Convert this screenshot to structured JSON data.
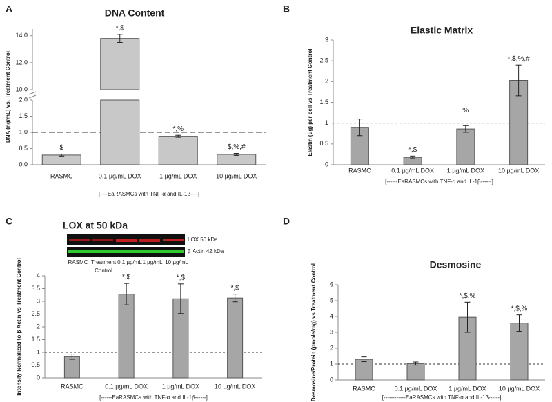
{
  "chart_data": [
    {
      "type": "bar",
      "panel": "A",
      "title": "DNA Content",
      "y_label": "DNA (ng/mL) vs. Treatment Control",
      "x_note": "[----EaRASMCs with TNF-α and IL-1β----]",
      "categories": [
        "RASMC",
        "0.1 µg/mL DOX",
        "1 µg/mL DOX",
        "10 µg/mL DOX"
      ],
      "values": [
        0.3,
        13.8,
        0.88,
        0.32
      ],
      "errors": [
        0.03,
        0.3,
        0.03,
        0.03
      ],
      "annotations": [
        "$",
        "*,$",
        "*,%",
        "$,%,#"
      ],
      "color": "#c8c8c8",
      "ylim": [
        0,
        14.5
      ],
      "axis_break": [
        2.0,
        10.0
      ],
      "ref_line": 1.0,
      "yticks": [
        {
          "value": 0,
          "label": "0.0"
        },
        {
          "value": 0.5,
          "label": "0.5"
        },
        {
          "value": 1,
          "label": "1.0"
        },
        {
          "value": 1.5,
          "label": "1.5"
        },
        {
          "value": 2,
          "label": "2.0"
        },
        {
          "value": 10,
          "label": "10.0"
        },
        {
          "value": 12,
          "label": "12.0"
        },
        {
          "value": 14,
          "label": "14.0"
        }
      ]
    },
    {
      "type": "bar",
      "panel": "B",
      "title": "Elastic Matrix",
      "y_label": "Elastin (ug) per cell vs Treatment Control",
      "x_note": "[------EaRASMCs  with TNF-α and IL-1β------]",
      "categories": [
        "RASMC",
        "0.1 µg/mL DOX",
        "1 µg/mL DOX",
        "10 µg/mL DOX"
      ],
      "values": [
        0.9,
        0.18,
        0.86,
        2.03
      ],
      "errors": [
        0.2,
        0.03,
        0.08,
        0.37
      ],
      "annotations": [
        null,
        "*,$",
        "%",
        "*,$,%,#"
      ],
      "color": "#a6a6a6",
      "ylim": [
        0,
        3
      ],
      "ref_line": 1,
      "yticks": [
        0,
        0.5,
        1,
        1.5,
        2,
        2.5,
        3
      ]
    },
    {
      "type": "bar",
      "panel": "C",
      "title": "LOX at 50 kDa",
      "y_label": "Intensity Normalized to β Actin vs Treatment Control",
      "x_note": "[------EaRASMCs  with TNF-α and IL-1β------]",
      "blot": {
        "rows": [
          "LOX 50 kDa",
          "β Actin 42 kDa"
        ],
        "lanes": [
          [
            "RASMC"
          ],
          [
            "Treatment",
            "Control"
          ],
          [
            "0.1 µg/mL"
          ],
          [
            "1 µg/mL"
          ],
          [
            "10 µg/mL"
          ]
        ]
      },
      "categories": [
        "RASMC",
        "0.1 µg/mL DOX",
        "1 µg/mL DOX",
        "10 µg/mL DOX"
      ],
      "values": [
        0.83,
        3.28,
        3.1,
        3.13
      ],
      "errors": [
        0.1,
        0.42,
        0.58,
        0.15
      ],
      "annotations": [
        null,
        "*,$",
        "*,$",
        "*,$"
      ],
      "color": "#a6a6a6",
      "ylim": [
        0,
        4
      ],
      "ref_line": 1,
      "yticks": [
        0,
        0.5,
        1,
        1.5,
        2,
        2.5,
        3,
        3.5,
        4
      ]
    },
    {
      "type": "bar",
      "panel": "D",
      "title": "Desmosine",
      "y_label": "Desmosine/Protein (pmole/mg) vs Treatment Control",
      "x_note": "[------------EaRASMCs with TNF-α and IL-1β------]",
      "categories": [
        "RASMC",
        "0.1 µg/mL DOX",
        "1 µg/mL DOX",
        "10 µg/mL DOX"
      ],
      "values": [
        1.3,
        1.03,
        3.95,
        3.58
      ],
      "errors": [
        0.15,
        0.1,
        0.95,
        0.52
      ],
      "annotations": [
        null,
        null,
        "*,$,%",
        "*,$,%"
      ],
      "color": "#a6a6a6",
      "ylim": [
        0,
        6
      ],
      "ref_line": 1,
      "yticks": [
        0,
        1,
        2,
        3,
        4,
        5,
        6
      ]
    }
  ]
}
